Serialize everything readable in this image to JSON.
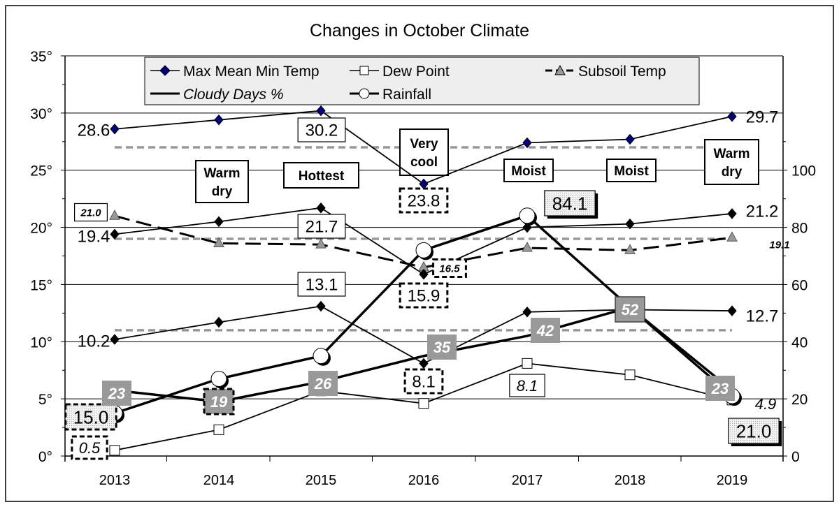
{
  "chart_data": {
    "type": "line",
    "title": "Changes in October Climate",
    "categories": [
      "2013",
      "2014",
      "2015",
      "2016",
      "2017",
      "2018",
      "2019"
    ],
    "left_axis": {
      "ylim": [
        0,
        35
      ],
      "ticks": [
        "0°",
        "5°",
        "10°",
        "15°",
        "20°",
        "25°",
        "30°",
        "35°"
      ]
    },
    "right_axis": {
      "ylim": [
        0,
        140
      ],
      "ticks": [
        "0",
        "20",
        "40",
        "60",
        "80",
        "100"
      ]
    },
    "grid": "horizontal major lines",
    "legend_placement": "top",
    "legend": [
      {
        "label": "Max Mean Min Temp",
        "marker": "diamond",
        "italic": false
      },
      {
        "label": "Dew Point",
        "marker": "square",
        "italic": false
      },
      {
        "label": "Subsoil Temp",
        "marker": "triangle",
        "italic": false
      },
      {
        "label": "Cloudy Days %",
        "marker": "none",
        "italic": true
      },
      {
        "label": "Rainfall",
        "marker": "circle",
        "italic": false
      }
    ],
    "series": [
      {
        "name": "Max Mean Min Temp",
        "part": "max",
        "axis": "left",
        "values": [
          28.6,
          29.4,
          30.2,
          23.8,
          27.4,
          27.7,
          29.7
        ],
        "color": "#000080"
      },
      {
        "name": "Max Mean Min Temp",
        "part": "mean",
        "axis": "left",
        "values": [
          19.4,
          20.5,
          21.7,
          15.9,
          20.0,
          20.3,
          21.2
        ],
        "color": "#000000"
      },
      {
        "name": "Max Mean Min Temp",
        "part": "min",
        "axis": "left",
        "values": [
          10.2,
          11.7,
          13.1,
          8.1,
          12.6,
          12.8,
          12.7
        ],
        "color": "#000000"
      },
      {
        "name": "Dew Point",
        "axis": "left",
        "values": [
          0.5,
          2.3,
          5.7,
          4.6,
          8.1,
          7.1,
          4.9
        ]
      },
      {
        "name": "Subsoil Temp",
        "axis": "left",
        "values": [
          21.0,
          18.6,
          18.5,
          16.5,
          18.2,
          18.0,
          19.1
        ],
        "color": "#999999"
      },
      {
        "name": "Cloudy Days %",
        "axis": "right",
        "values": [
          23,
          19,
          26,
          35,
          42,
          52,
          23
        ]
      },
      {
        "name": "Rainfall",
        "axis": "right",
        "values": [
          15.0,
          27,
          35,
          72,
          84.1,
          52,
          21.0
        ]
      }
    ],
    "reference_lines": {
      "axis": "left",
      "values": [
        27.0,
        19.0,
        11.0
      ],
      "color": "#999999",
      "style": "dashed"
    },
    "data_labels": [
      "28.6",
      "30.2",
      "23.8",
      "29.7",
      "19.4",
      "21.7",
      "15.9",
      "21.2",
      "10.2",
      "13.1",
      "8.1",
      "12.7",
      "21.0",
      "16.5",
      "19.1",
      "0.5",
      "8.1",
      "4.9",
      "15.0",
      "84.1",
      "21.0"
    ],
    "cloudy_labels": [
      "23",
      "19",
      "26",
      "35",
      "42",
      "52",
      "23"
    ],
    "annotations": [
      {
        "year": "2014",
        "lines": [
          "Warm",
          "dry"
        ]
      },
      {
        "year": "2015",
        "lines": [
          "Hottest"
        ]
      },
      {
        "year": "2016",
        "lines": [
          "Very",
          "cool"
        ]
      },
      {
        "year": "2017",
        "lines": [
          "Moist"
        ]
      },
      {
        "year": "2018",
        "lines": [
          "Moist"
        ]
      },
      {
        "year": "2019",
        "lines": [
          "Warm",
          "dry"
        ]
      }
    ]
  }
}
